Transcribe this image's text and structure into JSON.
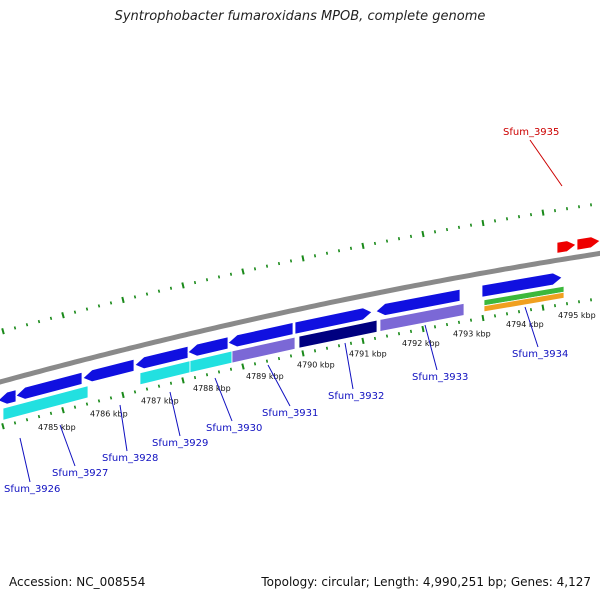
{
  "title": "Syntrophobacter fumaroxidans MPOB, complete genome",
  "footer": {
    "accession": "Accession: NC_008554",
    "summary": "Topology: circular; Length: 4,990,251 bp; Genes: 4,127"
  },
  "colors": {
    "backbone": "#8a8a8a",
    "cds": "#1010e0",
    "cds_dark": "#000080",
    "cyan": "#22e0e0",
    "lavender": "#7b68d6",
    "green": "#3cb83c",
    "orange": "#f0a020",
    "red": "#ee0000",
    "ticks": "#1a8a1a",
    "gene_label": "#1010c0",
    "gene_label_highlight": "#cc0000"
  },
  "kbp_labels": [
    "4785 kbp",
    "4786 kbp",
    "4787 kbp",
    "4788 kbp",
    "4789 kbp",
    "4790 kbp",
    "4791 kbp",
    "4792 kbp",
    "4793 kbp",
    "4794 kbp",
    "4795 kbp"
  ],
  "gene_labels": [
    "Sfum_3926",
    "Sfum_3927",
    "Sfum_3928",
    "Sfum_3929",
    "Sfum_3930",
    "Sfum_3931",
    "Sfum_3932",
    "Sfum_3933",
    "Sfum_3934",
    "Sfum_3935"
  ]
}
